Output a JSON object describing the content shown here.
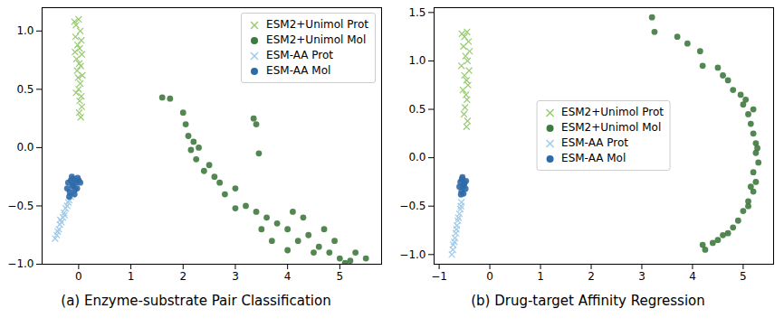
{
  "chart_data": [
    {
      "type": "scatter",
      "title": "(a) Enzyme-substrate Pair Classification",
      "xlim": [
        -0.7,
        5.8
      ],
      "xticks": [
        0,
        1,
        2,
        3,
        4,
        5
      ],
      "ylim": [
        -1.0,
        1.2
      ],
      "yticks": [
        {
          "value": -1.0,
          "label": "−1.0"
        },
        {
          "value": -0.5,
          "label": "−0.5"
        },
        {
          "value": 0.0,
          "label": "0.0"
        },
        {
          "value": 0.5,
          "label": "0.5"
        },
        {
          "value": 1.0,
          "label": "1.0"
        }
      ],
      "grid": false,
      "legend": "upper right",
      "series": [
        {
          "name": "ESM2+Unimol Prot",
          "color": "#98cc70",
          "marker": "x",
          "x": [
            -0.08,
            -0.05,
            0.0,
            0.03,
            -0.06,
            0.05,
            -0.02,
            0.02,
            -0.07,
            0.06,
            -0.04,
            0.01,
            0.04,
            -0.03,
            0.07,
            -0.01,
            0.03,
            0.0,
            -0.05,
            0.05,
            0.02,
            0.06,
            0.01,
            0.04
          ],
          "y": [
            1.08,
            1.05,
            1.1,
            1.0,
            0.95,
            0.92,
            0.88,
            0.85,
            0.82,
            0.8,
            0.76,
            0.72,
            0.7,
            0.66,
            0.62,
            0.6,
            0.55,
            0.5,
            0.47,
            0.44,
            0.4,
            0.35,
            0.3,
            0.26
          ]
        },
        {
          "name": "ESM2+Unimol Mol",
          "color": "#3f7a3f",
          "marker": "o",
          "x": [
            1.6,
            1.75,
            2.0,
            2.05,
            2.1,
            2.2,
            2.15,
            2.3,
            2.25,
            2.5,
            2.6,
            2.4,
            2.7,
            2.8,
            3.0,
            3.35,
            3.4,
            3.45,
            3.2,
            3.4,
            3.6,
            3.8,
            3.5,
            4.0,
            4.1,
            4.2,
            4.4,
            4.6,
            4.3,
            4.8,
            4.5,
            5.0,
            5.2,
            4.9,
            5.3,
            5.5,
            5.1,
            4.0,
            3.7,
            3.0,
            4.7
          ],
          "y": [
            0.43,
            0.42,
            0.3,
            0.2,
            0.1,
            0.05,
            -0.02,
            0.0,
            -0.1,
            -0.15,
            -0.25,
            -0.2,
            -0.3,
            -0.4,
            -0.35,
            0.25,
            0.2,
            -0.05,
            -0.5,
            -0.55,
            -0.6,
            -0.65,
            -0.7,
            -0.7,
            -0.55,
            -0.8,
            -0.75,
            -0.85,
            -0.6,
            -0.9,
            -0.9,
            -0.95,
            -0.97,
            -0.8,
            -0.9,
            -0.95,
            -0.99,
            -0.88,
            -0.8,
            -0.52,
            -0.7
          ]
        },
        {
          "name": "ESM-AA Prot",
          "color": "#9ecae9",
          "marker": "x",
          "x": [
            -0.45,
            -0.42,
            -0.4,
            -0.38,
            -0.36,
            -0.35,
            -0.33,
            -0.3,
            -0.28,
            -0.27,
            -0.25,
            -0.22,
            -0.2,
            -0.18,
            -0.15,
            -0.12
          ],
          "y": [
            -0.78,
            -0.75,
            -0.72,
            -0.7,
            -0.66,
            -0.62,
            -0.64,
            -0.6,
            -0.56,
            -0.58,
            -0.52,
            -0.5,
            -0.47,
            -0.45,
            -0.42,
            -0.4
          ]
        },
        {
          "name": "ESM-AA Mol",
          "color": "#2e6aa8",
          "marker": "o",
          "x": [
            -0.22,
            -0.2,
            -0.17,
            -0.15,
            -0.12,
            -0.1,
            -0.08,
            -0.05,
            -0.03,
            0.0,
            0.03,
            -0.18,
            -0.13,
            -0.07,
            -0.02,
            -0.1
          ],
          "y": [
            -0.35,
            -0.3,
            -0.38,
            -0.28,
            -0.33,
            -0.27,
            -0.4,
            -0.3,
            -0.35,
            -0.28,
            -0.3,
            -0.42,
            -0.25,
            -0.36,
            -0.26,
            -0.32
          ]
        }
      ]
    },
    {
      "type": "scatter",
      "title": "(b) Drug-target Affinity Regression",
      "xlim": [
        -1.1,
        5.6
      ],
      "xticks": [
        {
          "value": -1,
          "label": "−1"
        },
        0,
        1,
        2,
        3,
        4,
        5
      ],
      "ylim": [
        -1.1,
        1.55
      ],
      "yticks": [
        {
          "value": -1.0,
          "label": "−1.0"
        },
        {
          "value": -0.5,
          "label": "−0.5"
        },
        {
          "value": 0.0,
          "label": "0.0"
        },
        {
          "value": 0.5,
          "label": "0.5"
        },
        {
          "value": 1.0,
          "label": "1.0"
        },
        {
          "value": 1.5,
          "label": "1.5"
        }
      ],
      "grid": false,
      "legend": "center",
      "series": [
        {
          "name": "ESM2+Unimol Prot",
          "color": "#98cc70",
          "marker": "x",
          "x": [
            -0.55,
            -0.5,
            -0.45,
            -0.42,
            -0.52,
            -0.4,
            -0.48,
            -0.44,
            -0.56,
            -0.41,
            -0.5,
            -0.46,
            -0.43,
            -0.53,
            -0.47,
            -0.45,
            -0.49,
            -0.51,
            -0.44,
            -0.46
          ],
          "y": [
            1.28,
            1.25,
            1.3,
            1.2,
            1.15,
            1.1,
            1.05,
            1.0,
            0.95,
            0.9,
            0.85,
            0.8,
            0.75,
            0.7,
            0.65,
            0.6,
            0.52,
            0.45,
            0.38,
            0.32
          ]
        },
        {
          "name": "ESM2+Unimol Mol",
          "color": "#3f7a3f",
          "marker": "o",
          "x": [
            3.2,
            3.25,
            3.7,
            3.9,
            4.15,
            4.2,
            4.5,
            4.6,
            4.7,
            4.8,
            4.95,
            5.0,
            5.1,
            5.15,
            5.2,
            5.25,
            5.25,
            5.3,
            5.2,
            5.25,
            5.2,
            5.1,
            5.0,
            4.9,
            4.8,
            4.6,
            4.4,
            4.25,
            4.2,
            4.5,
            4.7,
            5.1,
            5.2,
            5.05,
            5.15,
            5.28
          ],
          "y": [
            1.45,
            1.3,
            1.25,
            1.18,
            1.1,
            0.95,
            0.93,
            0.85,
            0.8,
            0.7,
            0.65,
            0.55,
            0.45,
            0.35,
            0.25,
            0.15,
            0.05,
            -0.05,
            -0.15,
            -0.25,
            -0.35,
            -0.45,
            -0.55,
            -0.65,
            -0.72,
            -0.8,
            -0.88,
            -0.95,
            -0.9,
            -0.85,
            -0.78,
            -0.5,
            0.5,
            0.6,
            -0.3,
            0.1
          ]
        },
        {
          "name": "ESM-AA Prot",
          "color": "#9ecae9",
          "marker": "x",
          "x": [
            -0.75,
            -0.73,
            -0.72,
            -0.7,
            -0.69,
            -0.67,
            -0.66,
            -0.65,
            -0.63,
            -0.62,
            -0.6,
            -0.58,
            -0.57,
            -0.56
          ],
          "y": [
            -1.0,
            -0.95,
            -0.9,
            -0.87,
            -0.83,
            -0.78,
            -0.74,
            -0.7,
            -0.65,
            -0.62,
            -0.58,
            -0.53,
            -0.5,
            -0.46
          ]
        },
        {
          "name": "ESM-AA Mol",
          "color": "#2e6aa8",
          "marker": "o",
          "x": [
            -0.6,
            -0.58,
            -0.56,
            -0.55,
            -0.53,
            -0.52,
            -0.5,
            -0.48,
            -0.47,
            -0.57,
            -0.54,
            -0.51
          ],
          "y": [
            -0.3,
            -0.25,
            -0.35,
            -0.22,
            -0.3,
            -0.37,
            -0.26,
            -0.32,
            -0.24,
            -0.38,
            -0.2,
            -0.28
          ]
        }
      ]
    }
  ]
}
